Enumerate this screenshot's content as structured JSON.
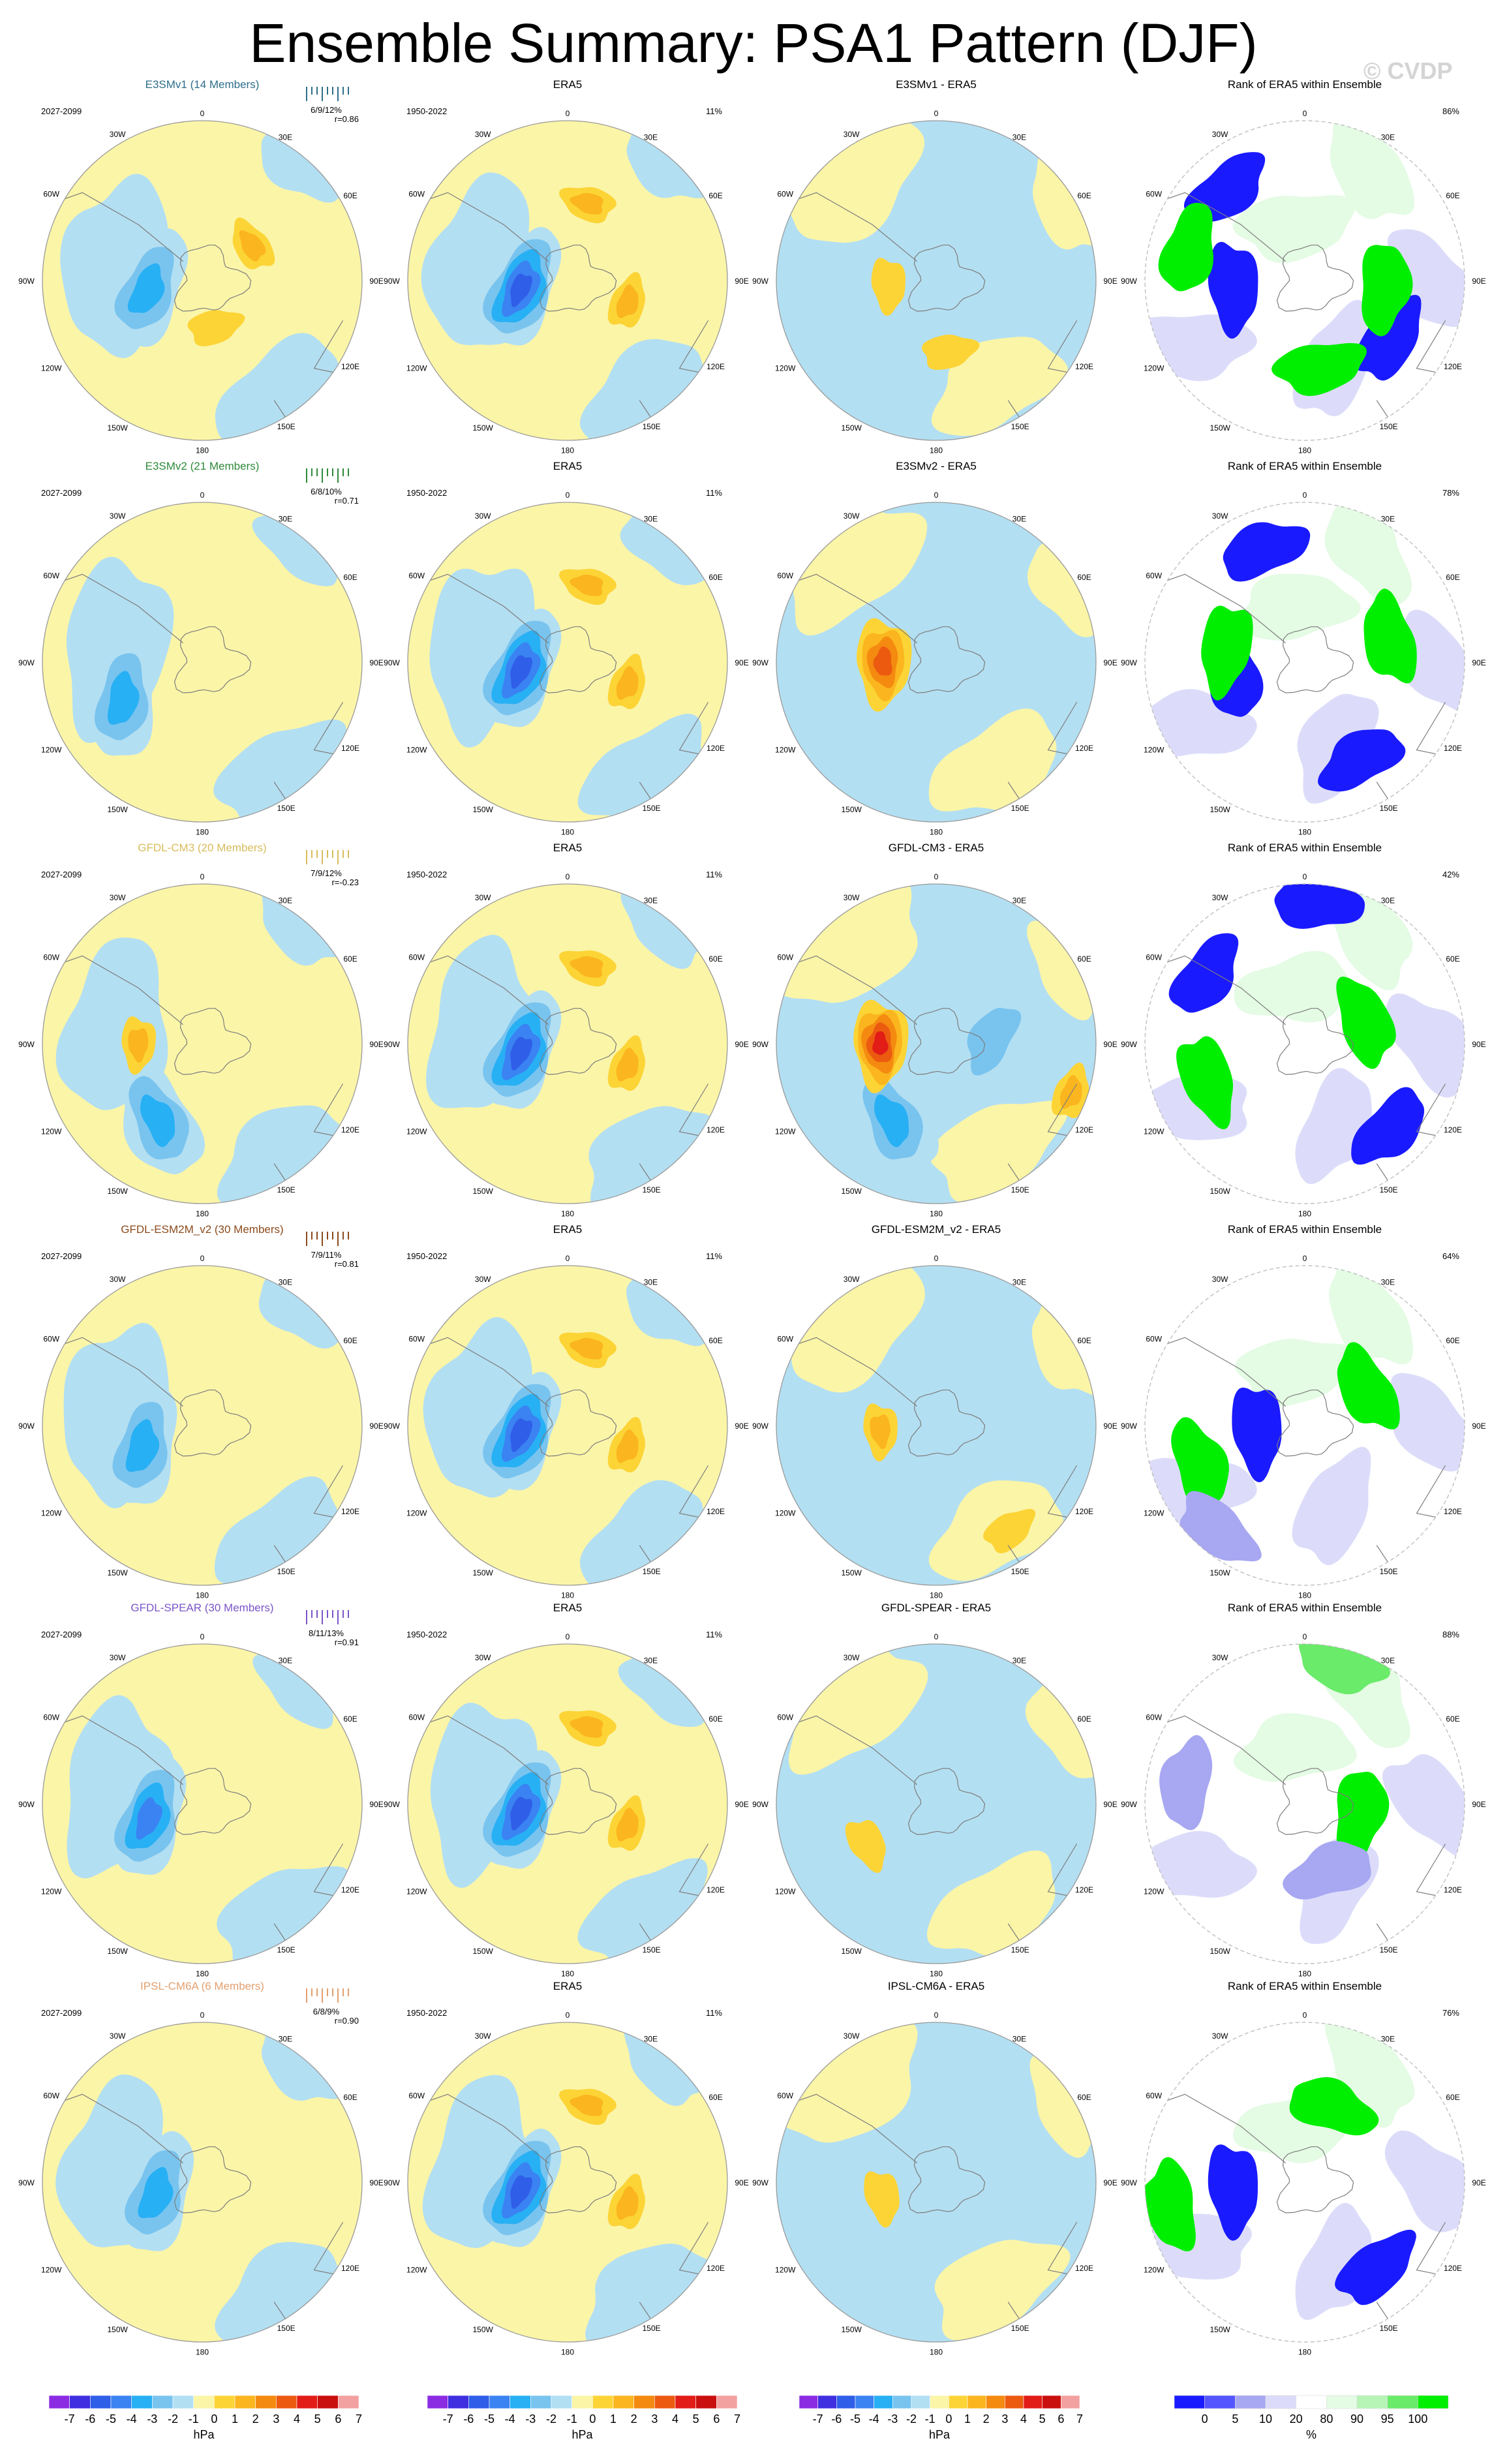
{
  "figure": {
    "title": "Ensemble Summary: PSA1 Pattern (DJF)",
    "watermark": "© CVDP"
  },
  "palette": {
    "neg": [
      "#8b2be2",
      "#3f2fe0",
      "#2f5ee8",
      "#3b82f2",
      "#28b0f4",
      "#79c4ef",
      "#b3dff2"
    ],
    "pos": [
      "#fbf5a8",
      "#fcd436",
      "#fbb51e",
      "#f48a10",
      "#ec5a10",
      "#e21c17",
      "#c9100e",
      "#f3a0a0"
    ],
    "rank": [
      "#1a1aff",
      "#5555ff",
      "#a7a7f2",
      "#dcdcfa",
      "#ffffff",
      "#e4fbe4",
      "#b6f5b6",
      "#6aeb6a",
      "#00ee00"
    ],
    "ocean_border": "#9a9a9a",
    "coast": "#7d7d7d"
  },
  "geo_labels": {
    "top": "0",
    "bottom": "180",
    "upper_left": "30W",
    "upper_right": "30E",
    "left_upper": "60W",
    "right_upper": "60E",
    "left": "90W",
    "right": "90E",
    "left_lower": "120W",
    "right_lower": "120E",
    "lower_left": "150W",
    "lower_right": "150E"
  },
  "colorbars": {
    "hpa_ticks": [
      "-7",
      "-6",
      "-5",
      "-4",
      "-3",
      "-2",
      "-1",
      "0",
      "1",
      "2",
      "3",
      "4",
      "5",
      "6",
      "7"
    ],
    "hpa_unit": "hPa",
    "rank_ticks": [
      "0",
      "5",
      "10",
      "20",
      "80",
      "90",
      "95",
      "100"
    ],
    "rank_unit": "%"
  },
  "chart_data": [
    {
      "type": "heatmap",
      "row": 0,
      "col": 0,
      "title": "E3SMv1 (14 Members)",
      "title_color": "#2e6e8a",
      "period": "2027-2099",
      "stats": "6/9/12%",
      "corr": "r=0.86",
      "lows": [
        {
          "lon": -100,
          "lat": 0.35,
          "amp": -3
        }
      ],
      "highs": [
        {
          "lon": 55,
          "lat": 0.38,
          "amp": 2
        },
        {
          "lon": 165,
          "lat": 0.3,
          "amp": 1
        }
      ]
    },
    {
      "type": "heatmap",
      "row": 0,
      "col": 1,
      "title": "ERA5",
      "period": "1950-2022",
      "pct": "11%",
      "lows": [
        {
          "lon": -100,
          "lat": 0.3,
          "amp": -5
        }
      ],
      "highs": [
        {
          "lon": 15,
          "lat": 0.5,
          "amp": 2
        },
        {
          "lon": 110,
          "lat": 0.4,
          "amp": 2
        }
      ]
    },
    {
      "type": "heatmap",
      "row": 0,
      "col": 2,
      "title": "E3SMv1 - ERA5",
      "lows": [],
      "highs": [
        {
          "lon": -95,
          "lat": 0.3,
          "amp": 1
        },
        {
          "lon": 170,
          "lat": 0.45,
          "amp": 1
        }
      ]
    },
    {
      "type": "heatmap",
      "row": 0,
      "col": 3,
      "title": "Rank of ERA5 within Ensemble",
      "pct": "86%",
      "rank_blobs": [
        {
          "lon": -40,
          "lat": 0.75,
          "cat": 0
        },
        {
          "lon": -95,
          "lat": 0.45,
          "cat": 0
        },
        {
          "lon": 125,
          "lat": 0.65,
          "cat": 0
        },
        {
          "lon": 170,
          "lat": 0.55,
          "cat": 8
        },
        {
          "lon": 95,
          "lat": 0.5,
          "cat": 8
        },
        {
          "lon": -75,
          "lat": 0.75,
          "cat": 8
        }
      ]
    },
    {
      "type": "heatmap",
      "row": 1,
      "col": 0,
      "title": "E3SMv2 (21 Members)",
      "title_color": "#2e8a3a",
      "period": "2027-2099",
      "stats": "6/8/10%",
      "corr": "r=0.71",
      "lows": [
        {
          "lon": -115,
          "lat": 0.55,
          "amp": -3
        }
      ],
      "highs": []
    },
    {
      "type": "heatmap",
      "row": 1,
      "col": 1,
      "title": "ERA5",
      "period": "1950-2022",
      "pct": "11%",
      "lows": [
        {
          "lon": -100,
          "lat": 0.3,
          "amp": -5
        }
      ],
      "highs": [
        {
          "lon": 15,
          "lat": 0.5,
          "amp": 2
        },
        {
          "lon": 110,
          "lat": 0.4,
          "amp": 2
        }
      ]
    },
    {
      "type": "heatmap",
      "row": 1,
      "col": 2,
      "title": "E3SMv2 - ERA5",
      "lows": [],
      "highs": [
        {
          "lon": -90,
          "lat": 0.33,
          "amp": 4
        }
      ]
    },
    {
      "type": "heatmap",
      "row": 1,
      "col": 3,
      "title": "Rank of ERA5 within Ensemble",
      "pct": "78%",
      "rank_blobs": [
        {
          "lon": -20,
          "lat": 0.75,
          "cat": 0
        },
        {
          "lon": -100,
          "lat": 0.45,
          "cat": 0
        },
        {
          "lon": 150,
          "lat": 0.7,
          "cat": 0
        },
        {
          "lon": 75,
          "lat": 0.55,
          "cat": 8
        },
        {
          "lon": -80,
          "lat": 0.5,
          "cat": 8
        }
      ]
    },
    {
      "type": "heatmap",
      "row": 2,
      "col": 0,
      "title": "GFDL-CM3 (20 Members)",
      "title_color": "#d8bc5c",
      "period": "2027-2099",
      "stats": "7/9/12%",
      "corr": "r=-0.23",
      "lows": [
        {
          "lon": -150,
          "lat": 0.55,
          "amp": -3
        }
      ],
      "highs": [
        {
          "lon": -90,
          "lat": 0.4,
          "amp": 2
        }
      ]
    },
    {
      "type": "heatmap",
      "row": 2,
      "col": 1,
      "title": "ERA5",
      "period": "1950-2022",
      "pct": "11%",
      "lows": [
        {
          "lon": -100,
          "lat": 0.3,
          "amp": -5
        }
      ],
      "highs": [
        {
          "lon": 15,
          "lat": 0.5,
          "amp": 2
        },
        {
          "lon": 110,
          "lat": 0.4,
          "amp": 2
        }
      ]
    },
    {
      "type": "heatmap",
      "row": 2,
      "col": 2,
      "title": "GFDL-CM3 - ERA5",
      "lows": [
        {
          "lon": -150,
          "lat": 0.55,
          "amp": -3
        },
        {
          "lon": 85,
          "lat": 0.35,
          "amp": -2
        }
      ],
      "highs": [
        {
          "lon": -90,
          "lat": 0.35,
          "amp": 5
        },
        {
          "lon": 110,
          "lat": 0.9,
          "amp": 2
        }
      ]
    },
    {
      "type": "heatmap",
      "row": 2,
      "col": 3,
      "title": "Rank of ERA5 within Ensemble",
      "pct": "42%",
      "rank_blobs": [
        {
          "lon": -110,
          "lat": 0.65,
          "cat": 8
        },
        {
          "lon": 70,
          "lat": 0.4,
          "cat": 8
        },
        {
          "lon": 135,
          "lat": 0.75,
          "cat": 0
        },
        {
          "lon": 5,
          "lat": 0.88,
          "cat": 0
        },
        {
          "lon": -55,
          "lat": 0.75,
          "cat": 0
        }
      ]
    },
    {
      "type": "heatmap",
      "row": 3,
      "col": 0,
      "title": "GFDL-ESM2M_v2 (30 Members)",
      "title_color": "#8b4a1c",
      "period": "2027-2099",
      "stats": "7/9/11%",
      "corr": "r=0.81",
      "lows": [
        {
          "lon": -110,
          "lat": 0.4,
          "amp": -3
        }
      ],
      "highs": []
    },
    {
      "type": "heatmap",
      "row": 3,
      "col": 1,
      "title": "ERA5",
      "period": "1950-2022",
      "pct": "11%",
      "lows": [
        {
          "lon": -100,
          "lat": 0.3,
          "amp": -5
        }
      ],
      "highs": [
        {
          "lon": 15,
          "lat": 0.5,
          "amp": 2
        },
        {
          "lon": 110,
          "lat": 0.4,
          "amp": 2
        }
      ]
    },
    {
      "type": "heatmap",
      "row": 3,
      "col": 2,
      "title": "GFDL-ESM2M_v2 - ERA5",
      "lows": [],
      "highs": [
        {
          "lon": -95,
          "lat": 0.35,
          "amp": 2
        },
        {
          "lon": 145,
          "lat": 0.8,
          "amp": 1
        }
      ]
    },
    {
      "type": "heatmap",
      "row": 3,
      "col": 3,
      "title": "Rank of ERA5 within Ensemble",
      "pct": "64%",
      "rank_blobs": [
        {
          "lon": -110,
          "lat": 0.7,
          "cat": 8
        },
        {
          "lon": 60,
          "lat": 0.45,
          "cat": 8
        },
        {
          "lon": -95,
          "lat": 0.3,
          "cat": 0
        },
        {
          "lon": -140,
          "lat": 0.85,
          "cat": 2
        }
      ]
    },
    {
      "type": "heatmap",
      "row": 4,
      "col": 0,
      "title": "GFDL-SPEAR (30 Members)",
      "title_color": "#7a55c8",
      "period": "2027-2099",
      "stats": "8/11/13%",
      "corr": "r=0.91",
      "lows": [
        {
          "lon": -105,
          "lat": 0.35,
          "amp": -4
        }
      ],
      "highs": []
    },
    {
      "type": "heatmap",
      "row": 4,
      "col": 1,
      "title": "ERA5",
      "period": "1950-2022",
      "pct": "11%",
      "lows": [
        {
          "lon": -100,
          "lat": 0.3,
          "amp": -5
        }
      ],
      "highs": [
        {
          "lon": 15,
          "lat": 0.5,
          "amp": 2
        },
        {
          "lon": 110,
          "lat": 0.4,
          "amp": 2
        }
      ]
    },
    {
      "type": "heatmap",
      "row": 4,
      "col": 2,
      "title": "GFDL-SPEAR - ERA5",
      "lows": [],
      "highs": [
        {
          "lon": -120,
          "lat": 0.5,
          "amp": 1
        }
      ]
    },
    {
      "type": "heatmap",
      "row": 4,
      "col": 3,
      "title": "Rank of ERA5 within Ensemble",
      "pct": "88%",
      "rank_blobs": [
        {
          "lon": -80,
          "lat": 0.75,
          "cat": 2
        },
        {
          "lon": 100,
          "lat": 0.35,
          "cat": 8
        },
        {
          "lon": 160,
          "lat": 0.45,
          "cat": 2
        },
        {
          "lon": 15,
          "lat": 0.9,
          "cat": 7
        }
      ]
    },
    {
      "type": "heatmap",
      "row": 5,
      "col": 0,
      "title": "IPSL-CM6A (6 Members)",
      "title_color": "#e3a06f",
      "period": "2027-2099",
      "stats": "6/8/9%",
      "corr": "r=0.90",
      "lows": [
        {
          "lon": -105,
          "lat": 0.3,
          "amp": -3
        }
      ],
      "highs": []
    },
    {
      "type": "heatmap",
      "row": 5,
      "col": 1,
      "title": "ERA5",
      "period": "1950-2022",
      "pct": "11%",
      "lows": [
        {
          "lon": -100,
          "lat": 0.3,
          "amp": -5
        }
      ],
      "highs": [
        {
          "lon": 15,
          "lat": 0.5,
          "amp": 2
        },
        {
          "lon": 110,
          "lat": 0.4,
          "amp": 2
        }
      ]
    },
    {
      "type": "heatmap",
      "row": 5,
      "col": 2,
      "title": "IPSL-CM6A - ERA5",
      "lows": [],
      "highs": [
        {
          "lon": -105,
          "lat": 0.35,
          "amp": 1
        }
      ]
    },
    {
      "type": "heatmap",
      "row": 5,
      "col": 3,
      "title": "Rank of ERA5 within Ensemble",
      "pct": "76%",
      "rank_blobs": [
        {
          "lon": -95,
          "lat": 0.45,
          "cat": 0
        },
        {
          "lon": 140,
          "lat": 0.7,
          "cat": 0
        },
        {
          "lon": -100,
          "lat": 0.85,
          "cat": 8
        },
        {
          "lon": 20,
          "lat": 0.5,
          "cat": 8
        }
      ]
    }
  ]
}
